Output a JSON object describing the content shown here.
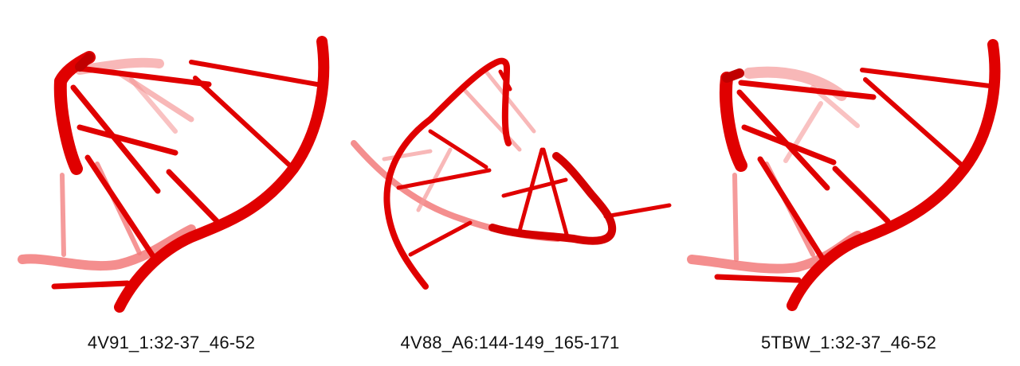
{
  "colors": {
    "rna": "#e00000",
    "rna_faded": "#f26a6a",
    "background": "#ffffff"
  },
  "panels": [
    {
      "caption": "4V91_1:32-37_46-52"
    },
    {
      "caption": "4V88_A6:144-149_165-171"
    },
    {
      "caption": "5TBW_1:32-37_46-52"
    }
  ]
}
